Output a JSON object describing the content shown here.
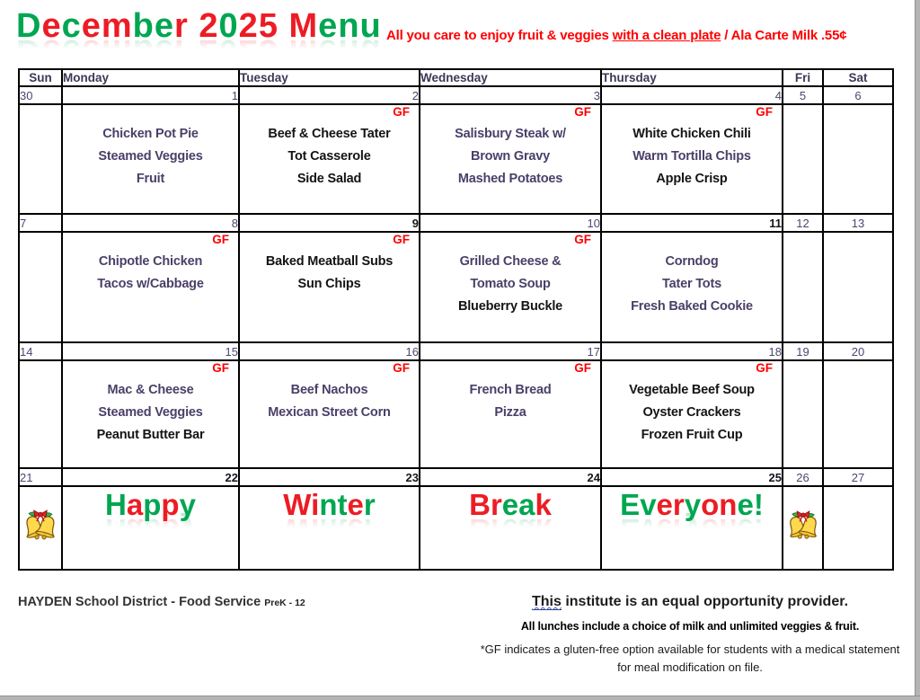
{
  "page": {
    "title": {
      "text": "December 2025 Menu",
      "colors": "grgrrggr rgrr rggg"
    },
    "subtitle": {
      "pre": "All you care to enjoy fruit & veggies ",
      "underline": "with a clean plate",
      "post": " / Ala Carte Milk .55¢"
    },
    "accent_colors": {
      "green": "#00a651",
      "red": "#ed1c24",
      "menu_purple": "#4a3f68",
      "menu_black": "#141414",
      "gf_red": "#ff0000"
    }
  },
  "cal": {
    "headers": [
      "Sun",
      "Monday",
      "Tuesday",
      "Wednesday",
      "Thursday",
      "Fri",
      "Sat"
    ],
    "weeks": [
      {
        "dates": [
          "30",
          "1",
          "2",
          "3",
          "4",
          "5",
          "6"
        ],
        "mon": {
          "gf": "",
          "lines": [
            {
              "t": "Chicken Pot Pie",
              "c": "p"
            },
            {
              "t": "Steamed Veggies",
              "c": "p"
            },
            {
              "t": "Fruit",
              "c": "p"
            }
          ]
        },
        "tue": {
          "gf": "GF",
          "lines": [
            {
              "t": "Beef & Cheese Tater",
              "c": "b"
            },
            {
              "t": "Tot Casserole",
              "c": "b"
            },
            {
              "t": "Side Salad",
              "c": "b"
            }
          ]
        },
        "wed": {
          "gf": "GF",
          "lines": [
            {
              "t": "Salisbury Steak w/",
              "c": "p"
            },
            {
              "t": "Brown Gravy",
              "c": "p"
            },
            {
              "t": "Mashed Potatoes",
              "c": "p"
            }
          ]
        },
        "thu": {
          "gf": "GF",
          "lines": [
            {
              "t": "White Chicken Chili",
              "c": "b"
            },
            {
              "t": "Warm Tortilla Chips",
              "c": "p"
            },
            {
              "t": "Apple Crisp",
              "c": "b"
            }
          ]
        }
      },
      {
        "dates": [
          "7",
          "8",
          "9",
          "10",
          "11",
          "12",
          "13"
        ],
        "mon": {
          "gf": "GF",
          "lines": [
            {
              "t": "Chipotle Chicken",
              "c": "p"
            },
            {
              "t": "Tacos w/Cabbage",
              "c": "p"
            }
          ]
        },
        "tue": {
          "gf": "GF",
          "lines": [
            {
              "t": "Baked Meatball Subs",
              "c": "b"
            },
            {
              "t": "Sun Chips",
              "c": "b"
            }
          ]
        },
        "wed": {
          "gf": "GF",
          "lines": [
            {
              "t": "Grilled Cheese &",
              "c": "p"
            },
            {
              "t": "Tomato Soup",
              "c": "p"
            },
            {
              "t": "Blueberry Buckle",
              "c": "b"
            }
          ]
        },
        "thu": {
          "gf": "",
          "lines": [
            {
              "t": "Corndog",
              "c": "p"
            },
            {
              "t": "Tater Tots",
              "c": "p"
            },
            {
              "t": "Fresh Baked Cookie",
              "c": "p"
            }
          ]
        }
      },
      {
        "dates": [
          "14",
          "15",
          "16",
          "17",
          "18",
          "19",
          "20"
        ],
        "mon": {
          "gf": "GF",
          "lines": [
            {
              "t": "Mac & Cheese",
              "c": "p"
            },
            {
              "t": "Steamed Veggies",
              "c": "p"
            },
            {
              "t": "Peanut Butter Bar",
              "c": "b"
            }
          ]
        },
        "tue": {
          "gf": "GF",
          "lines": [
            {
              "t": "Beef Nachos",
              "c": "p"
            },
            {
              "t": "Mexican Street Corn",
              "c": "p"
            }
          ]
        },
        "wed": {
          "gf": "GF",
          "lines": [
            {
              "t": "French Bread",
              "c": "p"
            },
            {
              "t": "Pizza",
              "c": "p"
            }
          ]
        },
        "thu": {
          "gf": "GF",
          "lines": [
            {
              "t": "Vegetable Beef Soup",
              "c": "b"
            },
            {
              "t": "Oyster Crackers",
              "c": "b"
            },
            {
              "t": "Frozen Fruit Cup",
              "c": "b"
            }
          ]
        }
      },
      {
        "dates": [
          "21",
          "22",
          "23",
          "24",
          "25",
          "26",
          "27"
        ],
        "words": {
          "mon": {
            "text": "Happy",
            "colors": "grgrg"
          },
          "tue": {
            "text": "Winter",
            "colors": "rrggrg"
          },
          "wed": {
            "text": "Break",
            "colors": "rrggr"
          },
          "thu": {
            "text": "Everyone!",
            "colors": "ggrrgrrgg"
          }
        }
      }
    ]
  },
  "footer": {
    "district": "HAYDEN School District - Food Service",
    "grades": "PreK - 12",
    "provider_first_word": "This",
    "provider_rest": " institute is an equal opportunity provider.",
    "note_bold": "All lunches include a choice of milk and unlimited veggies & fruit.",
    "gf_note_line1": "*GF indicates a gluten-free option available for students with a medical statement",
    "gf_note_line2": "for meal modification on file."
  }
}
